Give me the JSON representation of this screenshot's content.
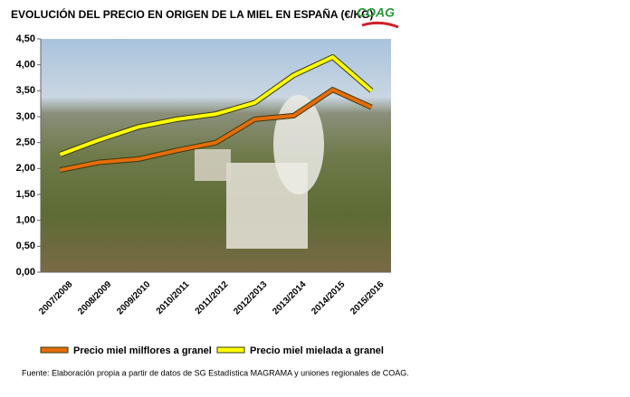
{
  "chart_data": {
    "type": "line",
    "title": "EVOLUCIÓN DEL PRECIO EN ORIGEN DE LA MIEL EN ESPAÑA (€/KG)",
    "logo": "COAG",
    "source": "Fuente: Elaboración propia a partir de datos de SG Estadística MAGRAMA y uniones regionales de COAG.",
    "categories": [
      "2007/2008",
      "2008/2009",
      "2009/2010",
      "2010/2011",
      "2011/2012",
      "2012/2013",
      "2013/2014",
      "2014/2015",
      "2015/2016"
    ],
    "series": [
      {
        "name": "Precio miel milflores a granel",
        "color": "#e46c0a",
        "values": [
          1.97,
          2.12,
          2.18,
          2.35,
          2.5,
          2.95,
          3.02,
          3.52,
          3.18
        ]
      },
      {
        "name": "Precio miel mielada a granel",
        "color": "#ffff00",
        "values": [
          2.27,
          2.55,
          2.8,
          2.95,
          3.05,
          3.27,
          3.8,
          4.15,
          3.5
        ]
      }
    ],
    "ylim": [
      0,
      4.5
    ],
    "yticks": [
      {
        "value": 0,
        "label": "0,00"
      },
      {
        "value": 0.5,
        "label": "0,50"
      },
      {
        "value": 1,
        "label": "1,00"
      },
      {
        "value": 1.5,
        "label": "1,50"
      },
      {
        "value": 2,
        "label": "2,00"
      },
      {
        "value": 2.5,
        "label": "2,50"
      },
      {
        "value": 3,
        "label": "3,00"
      },
      {
        "value": 3.5,
        "label": "3,50"
      },
      {
        "value": 4,
        "label": "4,00"
      },
      {
        "value": 4.5,
        "label": "4,50"
      }
    ],
    "grid": false
  }
}
